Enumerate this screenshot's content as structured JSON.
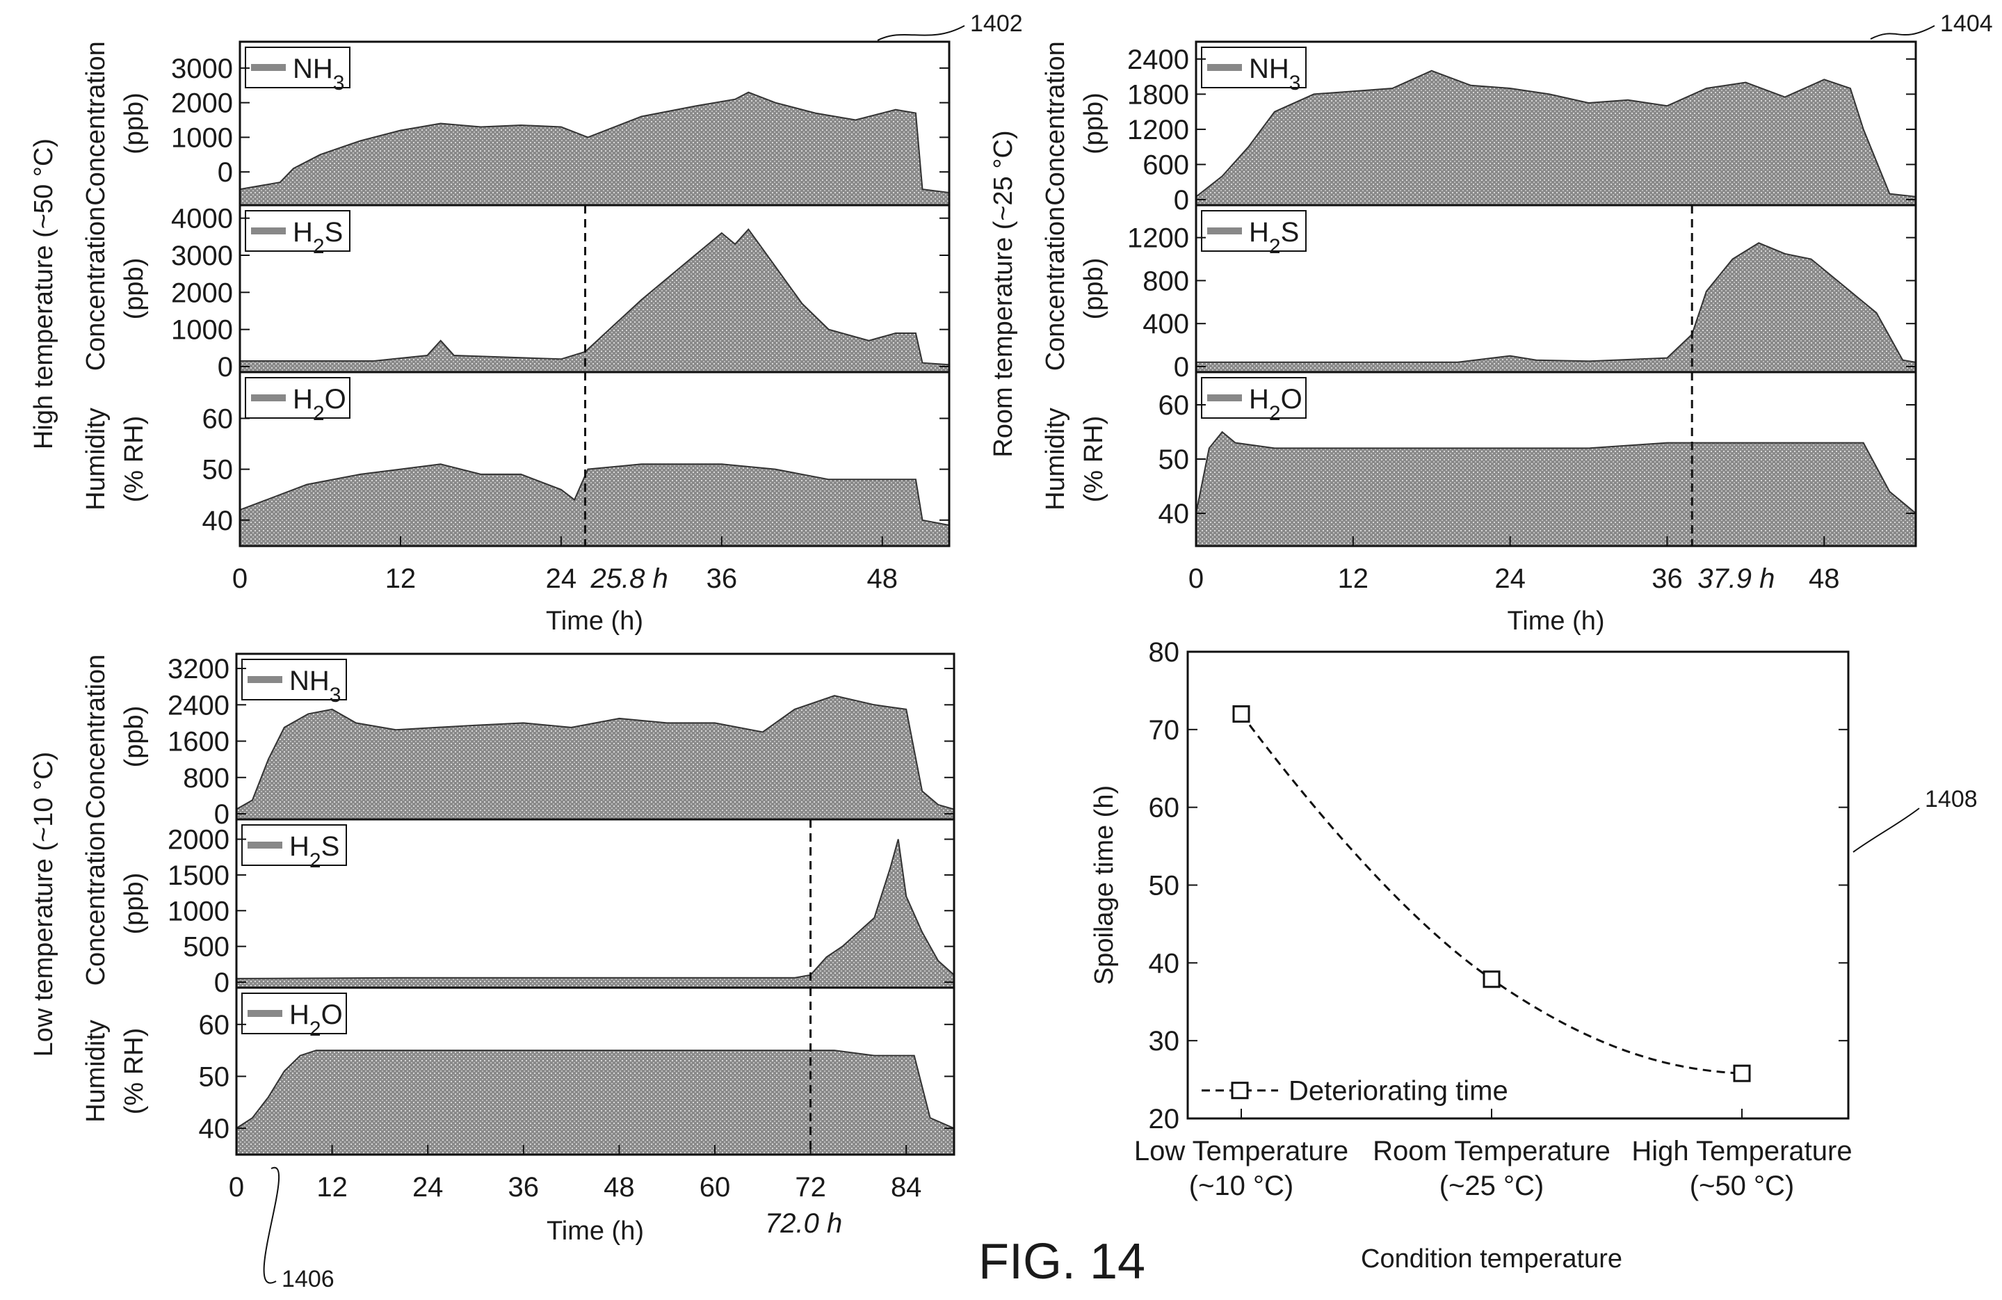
{
  "figure_label": "FIG. 14",
  "chart_data": [
    {
      "id": "1402",
      "ref_label": "1402",
      "type": "area",
      "group_label": "High temperature (~50 °C)",
      "xlabel": "Time (h)",
      "xlim": [
        0,
        53
      ],
      "xticks": [
        0,
        12,
        24,
        36,
        48
      ],
      "marker": {
        "x": 25.8,
        "label": "25.8 h"
      },
      "panels": [
        {
          "legend": "NH3",
          "ylabel": [
            "Concentration",
            "(ppb)"
          ],
          "ylim": [
            -800,
            3600
          ],
          "yticks": [
            0,
            1000,
            2000,
            3000
          ],
          "x": [
            0,
            3,
            4,
            6,
            9,
            12,
            15,
            18,
            21,
            24,
            26,
            30,
            34,
            37,
            38,
            40,
            43,
            46,
            49,
            50.5,
            51,
            53
          ],
          "y": [
            -500,
            -300,
            100,
            500,
            900,
            1200,
            1400,
            1300,
            1350,
            1300,
            1000,
            1600,
            1900,
            2100,
            2300,
            2000,
            1700,
            1500,
            1800,
            1700,
            -500,
            -600
          ]
        },
        {
          "legend": "H2S",
          "ylabel": [
            "Concentration",
            "(ppb)"
          ],
          "ylim": [
            0,
            4200
          ],
          "yticks": [
            0,
            1000,
            2000,
            3000,
            4000
          ],
          "x": [
            0,
            10,
            14,
            15,
            16,
            24,
            25.8,
            27,
            30,
            34,
            36,
            37,
            38,
            39,
            42,
            44,
            47,
            49,
            50.5,
            51,
            53
          ],
          "y": [
            150,
            150,
            300,
            700,
            300,
            200,
            400,
            800,
            1800,
            3000,
            3600,
            3300,
            3700,
            3200,
            1700,
            1000,
            700,
            900,
            900,
            100,
            50
          ]
        },
        {
          "legend": "H2O",
          "ylabel": [
            "Humidity",
            "(% RH)"
          ],
          "ylim": [
            36,
            68
          ],
          "yticks": [
            40,
            50,
            60
          ],
          "x": [
            0,
            2,
            5,
            9,
            12,
            15,
            18,
            21,
            24,
            25,
            26,
            30,
            36,
            40,
            44,
            48,
            50.5,
            51,
            53
          ],
          "y": [
            42,
            44,
            47,
            49,
            50,
            51,
            49,
            49,
            46,
            44,
            50,
            51,
            51,
            50,
            48,
            48,
            48,
            40,
            39
          ]
        }
      ]
    },
    {
      "id": "1404",
      "ref_label": "1404",
      "type": "area",
      "group_label": "Room temperature (~25 °C)",
      "xlabel": "Time (h)",
      "xlim": [
        0,
        55
      ],
      "xticks": [
        0,
        12,
        24,
        36,
        48
      ],
      "marker": {
        "x": 37.9,
        "label": "37.9 h"
      },
      "panels": [
        {
          "legend": "NH3",
          "ylabel": [
            "Concentration",
            "(ppb)"
          ],
          "ylim": [
            0,
            2600
          ],
          "yticks": [
            0,
            600,
            1200,
            1800,
            2400
          ],
          "x": [
            0,
            2,
            4,
            6,
            9,
            12,
            15,
            18,
            21,
            24,
            27,
            30,
            33,
            36,
            39,
            42,
            45,
            48,
            50,
            51,
            53,
            55
          ],
          "y": [
            50,
            400,
            900,
            1500,
            1800,
            1850,
            1900,
            2200,
            1950,
            1900,
            1800,
            1650,
            1700,
            1600,
            1900,
            2000,
            1750,
            2050,
            1900,
            1200,
            100,
            50
          ]
        },
        {
          "legend": "H2S",
          "ylabel": [
            "Concentration",
            "(ppb)"
          ],
          "ylim": [
            0,
            1450
          ],
          "yticks": [
            0,
            400,
            800,
            1200
          ],
          "x": [
            0,
            20,
            24,
            26,
            30,
            36,
            37.9,
            39,
            41,
            43,
            45,
            47,
            49,
            52,
            54,
            55
          ],
          "y": [
            40,
            40,
            100,
            60,
            50,
            80,
            300,
            700,
            1000,
            1150,
            1050,
            1000,
            800,
            500,
            60,
            40
          ]
        },
        {
          "legend": "H2O",
          "ylabel": [
            "Humidity",
            "(% RH)"
          ],
          "ylim": [
            35,
            65
          ],
          "yticks": [
            40,
            50,
            60
          ],
          "x": [
            0,
            1,
            2,
            3,
            6,
            12,
            18,
            24,
            30,
            36,
            42,
            48,
            51,
            53,
            55
          ],
          "y": [
            40,
            52,
            55,
            53,
            52,
            52,
            52,
            52,
            52,
            53,
            53,
            53,
            53,
            44,
            40
          ]
        }
      ]
    },
    {
      "id": "1406",
      "ref_label": "1406",
      "type": "area",
      "group_label": "Low temperature (~10 °C)",
      "xlabel": "Time (h)",
      "xlim": [
        0,
        90
      ],
      "xticks": [
        0,
        12,
        24,
        36,
        48,
        60,
        72,
        84
      ],
      "marker": {
        "x": 72.0,
        "label": "72.0 h"
      },
      "panels": [
        {
          "legend": "NH3",
          "ylabel": [
            "Concentration",
            "(ppb)"
          ],
          "ylim": [
            0,
            3400
          ],
          "yticks": [
            0,
            800,
            1600,
            2400,
            3200
          ],
          "x": [
            0,
            2,
            4,
            6,
            9,
            12,
            15,
            20,
            30,
            36,
            42,
            48,
            54,
            60,
            66,
            70,
            75,
            80,
            84,
            86,
            88,
            90
          ],
          "y": [
            100,
            300,
            1200,
            1900,
            2200,
            2300,
            2000,
            1850,
            1950,
            2000,
            1900,
            2100,
            2000,
            2000,
            1800,
            2300,
            2600,
            2400,
            2300,
            500,
            200,
            100
          ]
        },
        {
          "legend": "H2S",
          "ylabel": [
            "Concentration",
            "(ppb)"
          ],
          "ylim": [
            0,
            2200
          ],
          "yticks": [
            0,
            500,
            1000,
            1500,
            2000
          ],
          "x": [
            0,
            20,
            40,
            60,
            70,
            72,
            74,
            76,
            78,
            80,
            82,
            83,
            84,
            86,
            88,
            90
          ],
          "y": [
            50,
            60,
            60,
            60,
            60,
            100,
            350,
            500,
            700,
            900,
            1600,
            2000,
            1200,
            700,
            300,
            100
          ]
        },
        {
          "legend": "H2O",
          "ylabel": [
            "Humidity",
            "(% RH)"
          ],
          "ylim": [
            36,
            66
          ],
          "yticks": [
            40,
            50,
            60
          ],
          "x": [
            0,
            2,
            4,
            6,
            8,
            10,
            20,
            30,
            40,
            50,
            60,
            70,
            75,
            80,
            85,
            87,
            90
          ],
          "y": [
            40,
            42,
            46,
            51,
            54,
            55,
            55,
            55,
            55,
            55,
            55,
            55,
            55,
            54,
            54,
            42,
            40
          ]
        }
      ]
    },
    {
      "id": "1408",
      "ref_label": "1408",
      "type": "scatter",
      "xlabel": "Condition temperature",
      "ylabel": "Spoilage time (h)",
      "ylim": [
        20,
        80
      ],
      "yticks": [
        20,
        30,
        40,
        50,
        60,
        70,
        80
      ],
      "categories": [
        [
          "Low Temperature",
          "(~10 °C)"
        ],
        [
          "Room Temperature",
          "(~25 °C)"
        ],
        [
          "High Temperature",
          "(~50 °C)"
        ]
      ],
      "series": [
        {
          "name": "Deteriorating time",
          "values": [
            72.0,
            37.9,
            25.8
          ]
        }
      ],
      "legend_position": "bottom-left"
    }
  ]
}
